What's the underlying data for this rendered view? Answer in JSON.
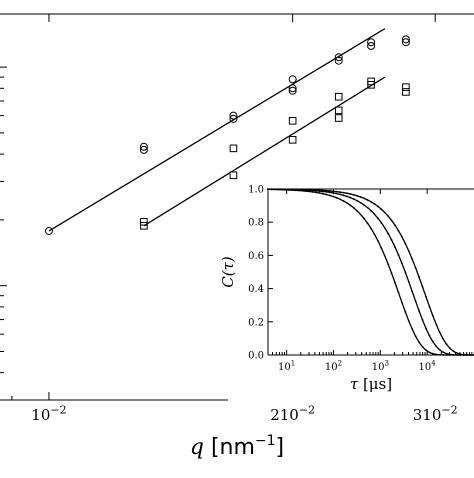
{
  "chart_data": [
    {
      "type": "scatter",
      "xlabel_symbol": "q",
      "xlabel_unit": "[nm",
      "xlabel_exp": "−1",
      "xlabel_close": "]",
      "ylabel": "",
      "xscale": "log",
      "xlim": [
        0.0087,
        0.0335
      ],
      "yscale": "log",
      "ylim": [
        0.0003,
        0.0175
      ],
      "xticks": [
        {
          "value": 0.01,
          "base": "10",
          "exp": "−2",
          "prefix": ""
        },
        {
          "value": 0.02,
          "base": "10",
          "exp": "−2",
          "prefix": "2"
        },
        {
          "value": 0.03,
          "base": "10",
          "exp": "−2",
          "prefix": "3"
        }
      ],
      "series": [
        {
          "marker": "circle",
          "points": [
            [
              0.01,
              0.00178
            ],
            [
              0.0131,
              0.00418
            ],
            [
              0.0131,
              0.00432
            ],
            [
              0.0169,
              0.0058
            ],
            [
              0.0169,
              0.006
            ],
            [
              0.02,
              0.0078
            ],
            [
              0.02,
              0.008
            ],
            [
              0.02,
              0.0088
            ],
            [
              0.0228,
              0.0107
            ],
            [
              0.0228,
              0.0111
            ],
            [
              0.025,
              0.0125
            ],
            [
              0.025,
              0.013
            ],
            [
              0.0276,
              0.013
            ],
            [
              0.0276,
              0.0134
            ]
          ],
          "fit": [
            [
              0.01,
              0.00178
            ],
            [
              0.026,
              0.015
            ]
          ]
        },
        {
          "marker": "square",
          "points": [
            [
              0.0131,
              0.00188
            ],
            [
              0.0131,
              0.00196
            ],
            [
              0.0169,
              0.0032
            ],
            [
              0.0169,
              0.00425
            ],
            [
              0.02,
              0.00465
            ],
            [
              0.02,
              0.00568
            ],
            [
              0.0228,
              0.00585
            ],
            [
              0.0228,
              0.00634
            ],
            [
              0.0228,
              0.00732
            ],
            [
              0.025,
              0.0083
            ],
            [
              0.025,
              0.0086
            ],
            [
              0.0276,
              0.0077
            ],
            [
              0.0276,
              0.0081
            ]
          ],
          "fit": [
            [
              0.0131,
              0.00188
            ],
            [
              0.026,
              0.009
            ]
          ]
        }
      ]
    },
    {
      "type": "line",
      "xlabel_symbol": "τ",
      "xlabel_unit": "[μs]",
      "ylabel": "C(τ)",
      "xscale": "log",
      "xlim": [
        4,
        100000
      ],
      "ylim": [
        0.0,
        1.0
      ],
      "yticks": [
        "0.0",
        "0.2",
        "0.4",
        "0.6",
        "0.8",
        "1.0"
      ],
      "xticks": [
        {
          "value": 10,
          "base": "10",
          "exp": "1"
        },
        {
          "value": 100,
          "base": "10",
          "exp": "2"
        },
        {
          "value": 1000,
          "base": "10",
          "exp": "3"
        },
        {
          "value": 10000,
          "base": "10",
          "exp": "4"
        }
      ],
      "series": [
        {
          "decay_time_us": 2500,
          "beta": 0.95
        },
        {
          "decay_time_us": 5000,
          "beta": 0.95
        },
        {
          "decay_time_us": 9000,
          "beta": 0.95
        }
      ]
    }
  ]
}
